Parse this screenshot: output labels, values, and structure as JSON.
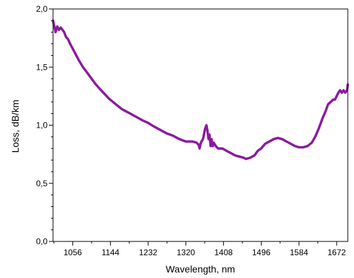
{
  "chart_data": {
    "type": "line",
    "xlabel": "Wavelength, nm",
    "ylabel": "Loss, dB/km",
    "xlim": [
      1010,
      1698
    ],
    "ylim": [
      0.0,
      2.0
    ],
    "x_ticks": [
      1056,
      1144,
      1232,
      1320,
      1408,
      1496,
      1584,
      1672
    ],
    "x_tick_labels": [
      "1056",
      "1144",
      "1232",
      "1320",
      "1408",
      "1496",
      "1584",
      "1672"
    ],
    "y_ticks": [
      0.0,
      0.5,
      1.0,
      1.5,
      2.0
    ],
    "y_tick_labels": [
      "0,0",
      "0,5",
      "1,0",
      "1,5",
      "2,0"
    ],
    "grid": false,
    "series": [
      {
        "color": "#8B1A9E",
        "x": [
          1010,
          1013,
          1016,
          1020,
          1024,
          1028,
          1032,
          1036,
          1040,
          1045,
          1050,
          1060,
          1070,
          1080,
          1090,
          1100,
          1110,
          1120,
          1130,
          1140,
          1150,
          1160,
          1170,
          1180,
          1190,
          1200,
          1210,
          1220,
          1232,
          1245,
          1260,
          1275,
          1290,
          1305,
          1320,
          1335,
          1345,
          1350,
          1352,
          1355,
          1360,
          1365,
          1368,
          1370,
          1373,
          1375,
          1378,
          1380,
          1383,
          1385,
          1390,
          1395,
          1405,
          1415,
          1425,
          1435,
          1445,
          1455,
          1460,
          1470,
          1480,
          1488,
          1496,
          1505,
          1515,
          1525,
          1535,
          1545,
          1555,
          1565,
          1575,
          1584,
          1594,
          1604,
          1614,
          1622,
          1630,
          1638,
          1646,
          1652,
          1658,
          1664,
          1668,
          1672,
          1676,
          1680,
          1684,
          1688,
          1692,
          1696,
          1698
        ],
        "y": [
          1.9,
          1.85,
          1.8,
          1.85,
          1.82,
          1.84,
          1.82,
          1.8,
          1.76,
          1.74,
          1.7,
          1.63,
          1.56,
          1.5,
          1.45,
          1.4,
          1.35,
          1.31,
          1.27,
          1.23,
          1.2,
          1.17,
          1.14,
          1.12,
          1.1,
          1.08,
          1.06,
          1.04,
          1.02,
          0.99,
          0.96,
          0.93,
          0.91,
          0.88,
          0.86,
          0.86,
          0.85,
          0.83,
          0.8,
          0.85,
          0.88,
          0.97,
          1.0,
          0.96,
          0.88,
          0.92,
          0.82,
          0.88,
          0.82,
          0.85,
          0.82,
          0.8,
          0.8,
          0.78,
          0.76,
          0.74,
          0.73,
          0.72,
          0.71,
          0.72,
          0.74,
          0.78,
          0.8,
          0.84,
          0.86,
          0.88,
          0.89,
          0.88,
          0.86,
          0.84,
          0.82,
          0.81,
          0.81,
          0.82,
          0.85,
          0.9,
          0.97,
          1.05,
          1.12,
          1.18,
          1.2,
          1.22,
          1.22,
          1.25,
          1.28,
          1.3,
          1.28,
          1.3,
          1.28,
          1.3,
          1.35
        ]
      }
    ]
  }
}
